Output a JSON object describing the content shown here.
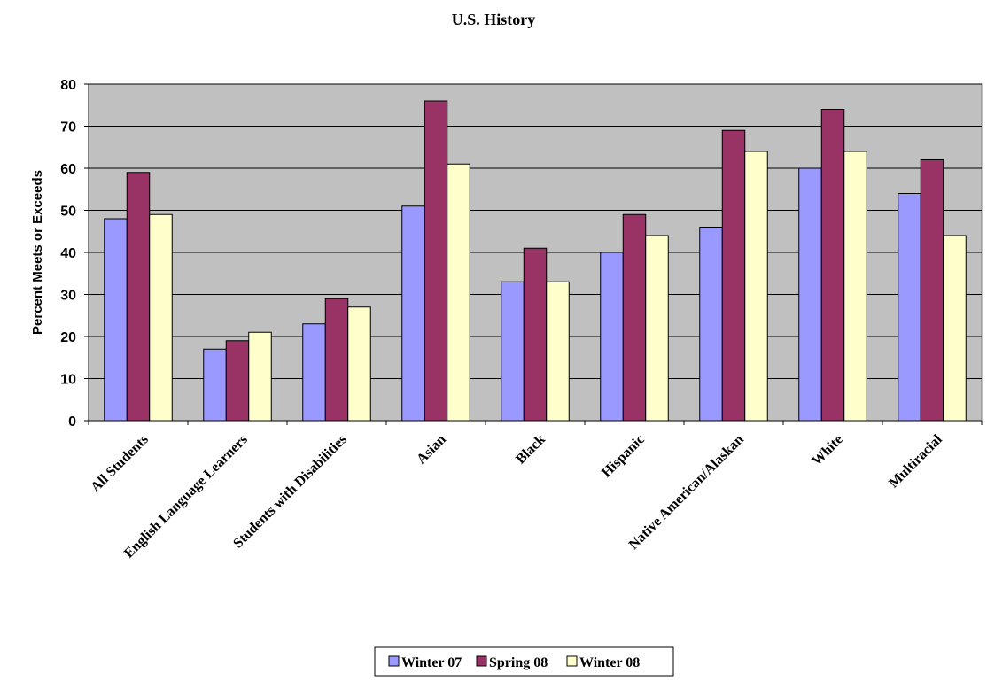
{
  "chart_data": {
    "type": "bar",
    "title": "U.S. History",
    "xlabel": "",
    "ylabel": "Percent Meets or Exceeds",
    "ylim": [
      0,
      80
    ],
    "yticks": [
      0,
      10,
      20,
      30,
      40,
      50,
      60,
      70,
      80
    ],
    "grid": true,
    "legend_position": "bottom",
    "plot_background": "#c0c0c0",
    "categories": [
      "All Students",
      "English Language Learners",
      "Students with Disabilities",
      "Asian",
      "Black",
      "Hispanic",
      "Native American/Alaskan",
      "White",
      "Multiracial"
    ],
    "series": [
      {
        "name": "Winter 07",
        "color": "#9999ff",
        "values": [
          48,
          17,
          23,
          51,
          33,
          40,
          46,
          60,
          54
        ]
      },
      {
        "name": "Spring 08",
        "color": "#993366",
        "values": [
          59,
          19,
          29,
          76,
          41,
          49,
          69,
          74,
          62
        ]
      },
      {
        "name": "Winter 08",
        "color": "#ffffcc",
        "values": [
          49,
          21,
          27,
          61,
          33,
          44,
          64,
          64,
          44
        ]
      }
    ]
  }
}
